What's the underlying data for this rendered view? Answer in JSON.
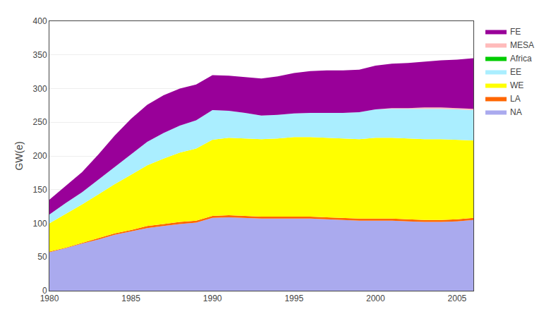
{
  "chart_data": {
    "type": "area",
    "stacked": true,
    "x": [
      1980,
      1981,
      1982,
      1983,
      1984,
      1985,
      1986,
      1987,
      1988,
      1989,
      1990,
      1991,
      1992,
      1993,
      1994,
      1995,
      1996,
      1997,
      1998,
      1999,
      2000,
      2001,
      2002,
      2003,
      2004,
      2005,
      2006
    ],
    "series": [
      {
        "name": "NA",
        "color": "#aaaaee",
        "values": [
          57,
          63,
          70,
          76,
          83,
          88,
          93,
          96,
          99,
          101,
          108,
          109,
          108,
          107,
          107,
          107,
          107,
          106,
          105,
          104,
          104,
          104,
          103,
          102,
          102,
          103,
          105
        ]
      },
      {
        "name": "LA",
        "color": "#ff6600",
        "values": [
          1,
          1,
          1,
          2,
          2,
          2,
          3,
          3,
          3,
          3,
          3,
          3,
          3,
          3,
          3,
          3,
          3,
          3,
          3,
          3,
          3,
          3,
          3,
          3,
          3,
          3,
          3
        ]
      },
      {
        "name": "WE",
        "color": "#ffff00",
        "values": [
          42,
          50,
          57,
          65,
          73,
          82,
          90,
          97,
          103,
          107,
          113,
          115,
          115,
          115,
          116,
          118,
          118,
          118,
          118,
          118,
          120,
          120,
          120,
          120,
          120,
          118,
          115
        ]
      },
      {
        "name": "EE",
        "color": "#aaeeff",
        "values": [
          13,
          16,
          18,
          22,
          26,
          31,
          35,
          38,
          40,
          42,
          44,
          40,
          38,
          35,
          35,
          35,
          36,
          37,
          38,
          40,
          42,
          43,
          44,
          45,
          45,
          45,
          45
        ]
      },
      {
        "name": "Africa",
        "color": "#00cc00",
        "values": [
          0,
          0,
          0,
          0,
          0,
          0,
          0,
          0,
          0,
          0,
          0,
          0,
          0,
          0,
          0,
          0,
          0,
          0,
          0,
          0,
          0,
          0,
          0,
          0,
          0,
          0,
          0
        ]
      },
      {
        "name": "MESA",
        "color": "#ffbbbb",
        "values": [
          0,
          0,
          0,
          0,
          0,
          0,
          0,
          0,
          0,
          0,
          0,
          0,
          0,
          0,
          0,
          0,
          0,
          0,
          0,
          0,
          0,
          1,
          1,
          2,
          2,
          2,
          2
        ]
      },
      {
        "name": "FE",
        "color": "#990099",
        "values": [
          22,
          25,
          30,
          37,
          46,
          52,
          55,
          56,
          55,
          53,
          52,
          52,
          53,
          55,
          57,
          60,
          62,
          63,
          63,
          63,
          65,
          66,
          67,
          68,
          70,
          72,
          75
        ]
      }
    ],
    "ylabel": "GW(e)",
    "xlim": [
      1980,
      2006
    ],
    "xticks": [
      1980,
      1985,
      1990,
      1995,
      2000,
      2005
    ],
    "ylim": [
      0,
      400
    ],
    "yticks": [
      0,
      50,
      100,
      150,
      200,
      250,
      300,
      350,
      400
    ],
    "grid": true,
    "legend": "right"
  }
}
